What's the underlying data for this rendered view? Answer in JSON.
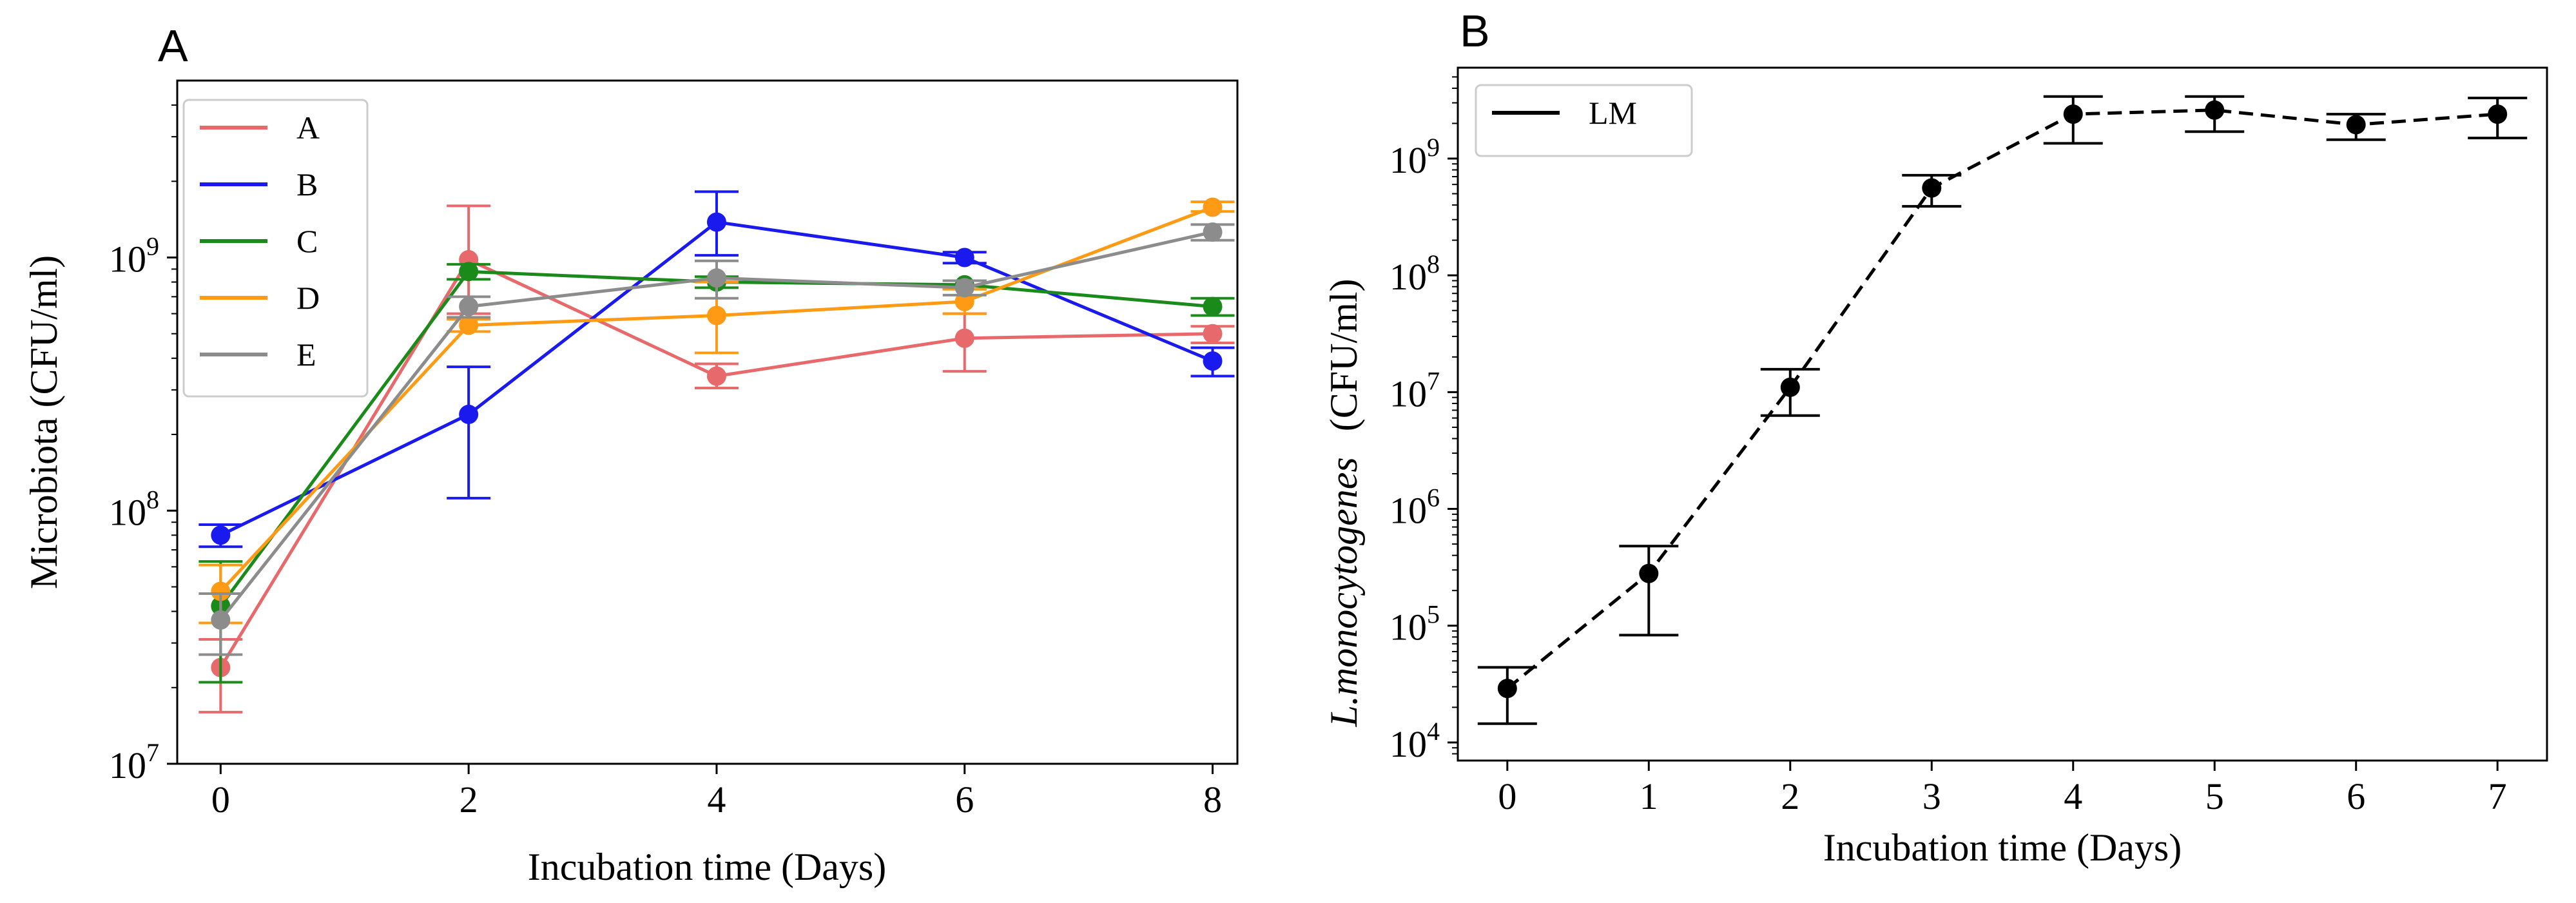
{
  "chart_data": [
    {
      "panel": "A",
      "type": "line",
      "title": "",
      "xlabel": "Incubation time (Days)",
      "ylabel": "Microbiota (CFU/ml)",
      "yscale": "log",
      "xlim": [
        -0.35,
        8.2
      ],
      "ylim": [
        10000000.0,
        5000000000.0
      ],
      "x_ticks": [
        0,
        2,
        4,
        6,
        8
      ],
      "y_ticks": [
        {
          "value": 10000000.0,
          "base": "10",
          "exp": "7"
        },
        {
          "value": 100000000.0,
          "base": "10",
          "exp": "8"
        },
        {
          "value": 1000000000.0,
          "base": "10",
          "exp": "9"
        }
      ],
      "legend_position": "upper-left",
      "x": [
        0,
        2,
        4,
        6,
        8
      ],
      "series": [
        {
          "name": "A",
          "color": "#e8696b",
          "values": [
            24000000.0,
            980000000.0,
            340000000.0,
            480000000.0,
            500000000.0
          ],
          "err_low": [
            16000000.0,
            600000000.0,
            305000000.0,
            355000000.0,
            460000000.0
          ],
          "err_high": [
            31000000.0,
            1600000000.0,
            380000000.0,
            600000000.0,
            535000000.0
          ]
        },
        {
          "name": "B",
          "color": "#1a1aee",
          "values": [
            80000000.0,
            240000000.0,
            1380000000.0,
            1000000000.0,
            390000000.0
          ],
          "err_low": [
            72000000.0,
            112000000.0,
            1020000000.0,
            950000000.0,
            340000000.0
          ],
          "err_high": [
            88000000.0,
            370000000.0,
            1820000000.0,
            1050000000.0,
            440000000.0
          ]
        },
        {
          "name": "C",
          "color": "#1a8a1a",
          "values": [
            42000000.0,
            880000000.0,
            800000000.0,
            780000000.0,
            640000000.0
          ],
          "err_low": [
            21000000.0,
            820000000.0,
            760000000.0,
            750000000.0,
            590000000.0
          ],
          "err_high": [
            63000000.0,
            940000000.0,
            840000000.0,
            810000000.0,
            690000000.0
          ]
        },
        {
          "name": "D",
          "color": "#ff9a14",
          "values": [
            48000000.0,
            540000000.0,
            590000000.0,
            670000000.0,
            1580000000.0
          ],
          "err_low": [
            36000000.0,
            510000000.0,
            420000000.0,
            600000000.0,
            1520000000.0
          ],
          "err_high": [
            61000000.0,
            570000000.0,
            800000000.0,
            750000000.0,
            1660000000.0
          ]
        },
        {
          "name": "E",
          "color": "#8c8c8c",
          "values": [
            37000000.0,
            640000000.0,
            830000000.0,
            760000000.0,
            1260000000.0
          ],
          "err_low": [
            27000000.0,
            580000000.0,
            690000000.0,
            710000000.0,
            1170000000.0
          ],
          "err_high": [
            47000000.0,
            700000000.0,
            970000000.0,
            810000000.0,
            1350000000.0
          ]
        }
      ]
    },
    {
      "panel": "B",
      "type": "line",
      "title": "",
      "xlabel": "Incubation time (Days)",
      "ylabel_italic": "L.monocytogenes",
      "ylabel_units": "(CFU/ml)",
      "yscale": "log",
      "xlim": [
        -0.35,
        7.35
      ],
      "ylim": [
        7000.0,
        6000000000.0
      ],
      "x_ticks": [
        0,
        1,
        2,
        3,
        4,
        5,
        6,
        7
      ],
      "y_ticks": [
        {
          "value": 10000.0,
          "base": "10",
          "exp": "4"
        },
        {
          "value": 100000.0,
          "base": "10",
          "exp": "5"
        },
        {
          "value": 1000000.0,
          "base": "10",
          "exp": "6"
        },
        {
          "value": 10000000.0,
          "base": "10",
          "exp": "7"
        },
        {
          "value": 100000000.0,
          "base": "10",
          "exp": "8"
        },
        {
          "value": 1000000000.0,
          "base": "10",
          "exp": "9"
        }
      ],
      "legend_position": "upper-left",
      "x": [
        0,
        1,
        2,
        3,
        4,
        5,
        6,
        7
      ],
      "series": [
        {
          "name": "LM",
          "color": "#000000",
          "dashed": true,
          "values": [
            29000.0,
            280000.0,
            11000000.0,
            560000000.0,
            2400000000.0,
            2600000000.0,
            1950000000.0,
            2400000000.0
          ],
          "err_low": [
            14500.0,
            83000.0,
            6300000.0,
            390000000.0,
            1350000000.0,
            1700000000.0,
            1450000000.0,
            1500000000.0
          ],
          "err_high": [
            44000.0,
            480000.0,
            15700000.0,
            720000000.0,
            3400000000.0,
            3400000000.0,
            2400000000.0,
            3300000000.0
          ]
        }
      ]
    }
  ]
}
